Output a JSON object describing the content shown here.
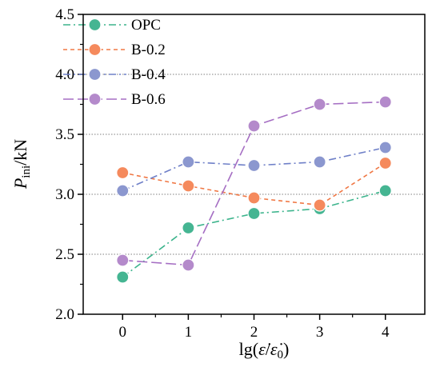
{
  "chart_data": {
    "type": "line",
    "x": [
      0,
      1,
      2,
      3,
      4
    ],
    "xlim": [
      -0.6,
      4.6
    ],
    "ylim": [
      2.0,
      4.5
    ],
    "x_ticks": [
      "0",
      "1",
      "2",
      "3",
      "4"
    ],
    "y_ticks": [
      "2.0",
      "2.5",
      "3.0",
      "3.5",
      "4.0",
      "4.5"
    ],
    "y_tick_values": [
      2.0,
      2.5,
      3.0,
      3.5,
      4.0,
      4.5
    ],
    "xlabel": {
      "prefix": "lg(",
      "num": "ε̇",
      "slash": "/",
      "den": "ε̇",
      "den_sub": "0",
      "suffix": ")"
    },
    "ylabel": {
      "main": "P",
      "sub": "ini",
      "suffix": "/kN"
    },
    "grid": "horizontal",
    "legend_position": "top-left",
    "series": [
      {
        "name": "OPC",
        "values": [
          2.31,
          2.72,
          2.84,
          2.88,
          3.03
        ],
        "line_color": "#3cb48c",
        "marker_color": "#45b592",
        "dash": "dashdot"
      },
      {
        "name": "B-0.2",
        "values": [
          3.18,
          3.07,
          2.97,
          2.91,
          3.26
        ],
        "line_color": "#f07845",
        "marker_color": "#f58a5d",
        "dash": "dashed"
      },
      {
        "name": "B-0.4",
        "values": [
          3.03,
          3.27,
          3.24,
          3.27,
          3.39
        ],
        "line_color": "#6f80c8",
        "marker_color": "#8b97cf",
        "dash": "dashdot"
      },
      {
        "name": "B-0.6",
        "values": [
          2.45,
          2.41,
          3.57,
          3.75,
          3.77
        ],
        "line_color": "#a56ec3",
        "marker_color": "#b48acb",
        "dash": "longdash"
      }
    ]
  }
}
